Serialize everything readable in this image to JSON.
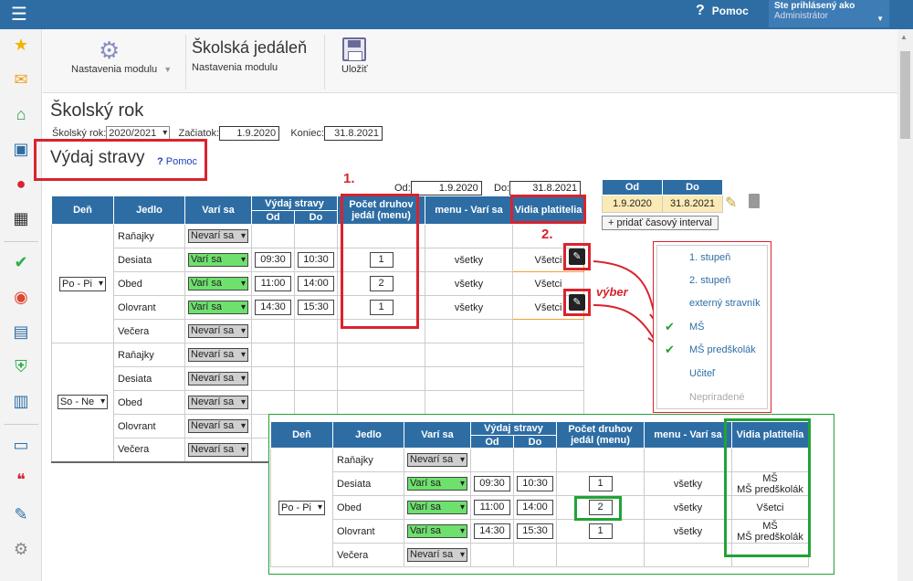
{
  "topbar": {
    "help_label": "Pomoc",
    "user_line1": "Ste prihlásený ako",
    "user_line2": "Administrátor"
  },
  "sidebar": {
    "icons": [
      "star-icon",
      "envelope-icon",
      "home-icon",
      "book-icon",
      "user-icon",
      "calendar-icon",
      "check-icon",
      "pin-icon",
      "briefcase-icon",
      "shield-icon",
      "chart-icon",
      "open-book-icon",
      "chat-icon",
      "pen-icon",
      "gear-icon"
    ]
  },
  "toolbar": {
    "module_settings": "Nastavenia modulu",
    "app_title": "Školská jedáleň",
    "app_subtitle": "Nastavenia modulu",
    "save_label": "Uložiť"
  },
  "school_year": {
    "title": "Školský rok",
    "year_label": "Školský rok:",
    "year_value": "2020/2021",
    "start_label": "Začiatok:",
    "start_value": "1.9.2020",
    "end_label": "Koniec:",
    "end_value": "31.8.2021"
  },
  "vydaj": {
    "title": "Výdaj stravy",
    "help": "Pomoc",
    "od_label": "Od:",
    "od_value": "1.9.2020",
    "do_label": "Do:",
    "do_value": "31.8.2021"
  },
  "annotations": {
    "num1": "1.",
    "num2": "2.",
    "vyber": "výber"
  },
  "table": {
    "headers": {
      "den": "Deň",
      "jedlo": "Jedlo",
      "vari_sa": "Varí sa",
      "vydaj": "Výdaj stravy",
      "od": "Od",
      "do": "Do",
      "pocet1": "Počet druhov",
      "pocet2": "jedál (menu)",
      "menu_vari": "menu - Varí sa",
      "vidia": "Vidia platitelia"
    },
    "group1_den": "Po - Pi",
    "group2_den": "So - Ne",
    "rows1": [
      {
        "jedlo": "Raňajky",
        "vari": "Nevarí sa",
        "od": "",
        "do": "",
        "pocet": "",
        "menu": "",
        "vidia": ""
      },
      {
        "jedlo": "Desiata",
        "vari": "Varí sa",
        "od": "09:30",
        "do": "10:30",
        "pocet": "1",
        "menu": "všetky",
        "vidia": "Všetci"
      },
      {
        "jedlo": "Obed",
        "vari": "Varí sa",
        "od": "11:00",
        "do": "14:00",
        "pocet": "2",
        "menu": "všetky",
        "vidia": "Všetci"
      },
      {
        "jedlo": "Olovrant",
        "vari": "Varí sa",
        "od": "14:30",
        "do": "15:30",
        "pocet": "1",
        "menu": "všetky",
        "vidia": "Všetci"
      },
      {
        "jedlo": "Večera",
        "vari": "Nevarí sa",
        "od": "",
        "do": "",
        "pocet": "",
        "menu": "",
        "vidia": ""
      }
    ],
    "rows2": [
      {
        "jedlo": "Raňajky",
        "vari": "Nevarí sa"
      },
      {
        "jedlo": "Desiata",
        "vari": "Nevarí sa"
      },
      {
        "jedlo": "Obed",
        "vari": "Nevarí sa"
      },
      {
        "jedlo": "Olovrant",
        "vari": "Nevarí sa"
      },
      {
        "jedlo": "Večera",
        "vari": "Nevarí sa"
      }
    ]
  },
  "interval": {
    "od_h": "Od",
    "do_h": "Do",
    "od": "1.9.2020",
    "do": "31.8.2021",
    "add": "+ pridať časový interval"
  },
  "popup": {
    "items": [
      "1. stupeň",
      "2. stupeň",
      "externý stravník",
      "MŠ",
      "MŠ predškolák",
      "Učiteľ",
      "Nepriradené"
    ]
  },
  "panel2": {
    "den": "Po - Pi",
    "rows": [
      {
        "jedlo": "Raňajky",
        "vari": "Nevarí sa",
        "od": "",
        "do": "",
        "pocet": "",
        "menu": "",
        "vidia1": "",
        "vidia2": ""
      },
      {
        "jedlo": "Desiata",
        "vari": "Varí sa",
        "od": "09:30",
        "do": "10:30",
        "pocet": "1",
        "menu": "všetky",
        "vidia1": "MŠ",
        "vidia2": "MŠ predškolák"
      },
      {
        "jedlo": "Obed",
        "vari": "Varí sa",
        "od": "11:00",
        "do": "14:00",
        "pocet": "2",
        "menu": "všetky",
        "vidia1": "Všetci",
        "vidia2": ""
      },
      {
        "jedlo": "Olovrant",
        "vari": "Varí sa",
        "od": "14:30",
        "do": "15:30",
        "pocet": "1",
        "menu": "všetky",
        "vidia1": "MŠ",
        "vidia2": "MŠ predškolák"
      },
      {
        "jedlo": "Večera",
        "vari": "Nevarí sa",
        "od": "",
        "do": "",
        "pocet": "",
        "menu": "",
        "vidia1": "",
        "vidia2": ""
      }
    ]
  }
}
